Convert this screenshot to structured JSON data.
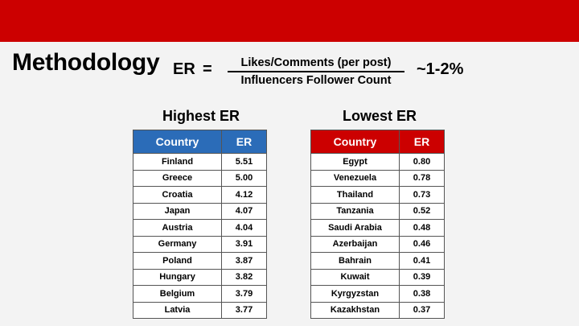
{
  "slide": {
    "title": "Methodology",
    "formula": {
      "lhs": "ER",
      "equals": "=",
      "numerator": "Likes/Comments (per post)",
      "denominator": "Influencers Follower Count",
      "approx": "~1-2%"
    },
    "colors": {
      "top_bar": "#cc0000",
      "highest_header": "#2b6cb8",
      "lowest_header": "#cc0000"
    }
  },
  "highest": {
    "title": "Highest ER",
    "headers": [
      "Country",
      "ER"
    ],
    "rows": [
      [
        "Finland",
        "5.51"
      ],
      [
        "Greece",
        "5.00"
      ],
      [
        "Croatia",
        "4.12"
      ],
      [
        "Japan",
        "4.07"
      ],
      [
        "Austria",
        "4.04"
      ],
      [
        "Germany",
        "3.91"
      ],
      [
        "Poland",
        "3.87"
      ],
      [
        "Hungary",
        "3.82"
      ],
      [
        "Belgium",
        "3.79"
      ],
      [
        "Latvia",
        "3.77"
      ]
    ]
  },
  "lowest": {
    "title": "Lowest ER",
    "headers": [
      "Country",
      "ER"
    ],
    "rows": [
      [
        "Egypt",
        "0.80"
      ],
      [
        "Venezuela",
        "0.78"
      ],
      [
        "Thailand",
        "0.73"
      ],
      [
        "Tanzania",
        "0.52"
      ],
      [
        "Saudi Arabia",
        "0.48"
      ],
      [
        "Azerbaijan",
        "0.46"
      ],
      [
        "Bahrain",
        "0.41"
      ],
      [
        "Kuwait",
        "0.39"
      ],
      [
        "Kyrgyzstan",
        "0.38"
      ],
      [
        "Kazakhstan",
        "0.37"
      ]
    ]
  }
}
